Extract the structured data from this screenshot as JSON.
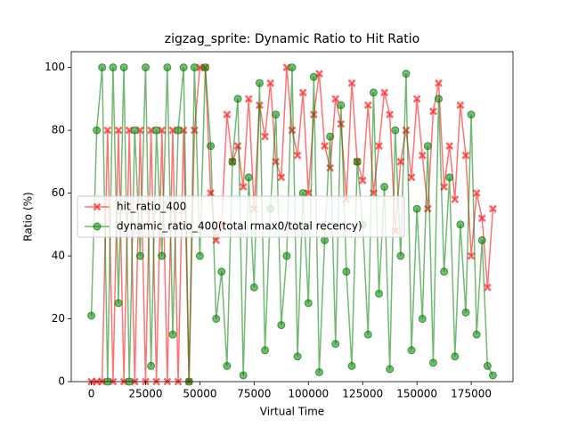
{
  "chart_data": {
    "type": "line",
    "title": "zigzag_sprite: Dynamic Ratio to Hit Ratio",
    "xlabel": "Virtual Time",
    "ylabel": "Ratio (%)",
    "x": [
      0,
      2500,
      5000,
      7500,
      10000,
      12500,
      15000,
      17500,
      20000,
      22500,
      25000,
      27500,
      30000,
      32500,
      35000,
      37500,
      40000,
      42500,
      45000,
      47500,
      50000,
      52500,
      55000,
      57500,
      60000,
      62500,
      65000,
      67500,
      70000,
      72500,
      75000,
      77500,
      80000,
      82500,
      85000,
      87500,
      90000,
      92500,
      95000,
      97500,
      100000,
      102500,
      105000,
      107500,
      110000,
      112500,
      115000,
      117500,
      120000,
      122500,
      125000,
      127500,
      130000,
      132500,
      135000,
      137500,
      140000,
      142500,
      145000,
      147500,
      150000,
      152500,
      155000,
      157500,
      160000,
      162500,
      165000,
      167500,
      170000,
      172500,
      175000,
      177500,
      180000,
      182500,
      185000
    ],
    "series": [
      {
        "name": "hit_ratio_400",
        "color": "#ff0000",
        "marker": "x",
        "values": [
          0,
          0,
          0,
          80,
          0,
          80,
          0,
          80,
          0,
          80,
          0,
          80,
          0,
          80,
          0,
          80,
          0,
          80,
          0,
          80,
          100,
          100,
          60,
          45,
          50,
          85,
          70,
          75,
          62,
          90,
          55,
          88,
          78,
          95,
          70,
          65,
          100,
          80,
          72,
          92,
          60,
          85,
          98,
          75,
          68,
          90,
          82,
          58,
          95,
          70,
          64,
          88,
          60,
          75,
          92,
          85,
          48,
          70,
          80,
          65,
          90,
          72,
          55,
          86,
          95,
          62,
          75,
          58,
          88,
          72,
          40,
          60,
          52,
          30,
          55
        ]
      },
      {
        "name": "dynamic_ratio_400(total rmax0/total recency)",
        "color": "#008000",
        "marker": "o",
        "values": [
          21,
          80,
          100,
          0,
          100,
          25,
          100,
          0,
          80,
          40,
          100,
          5,
          80,
          40,
          100,
          15,
          80,
          100,
          0,
          100,
          40,
          100,
          75,
          20,
          35,
          5,
          70,
          90,
          2,
          65,
          30,
          95,
          10,
          55,
          85,
          18,
          40,
          100,
          8,
          60,
          25,
          97,
          3,
          45,
          78,
          12,
          88,
          35,
          5,
          70,
          50,
          15,
          92,
          28,
          62,
          4,
          80,
          40,
          98,
          10,
          55,
          20,
          75,
          6,
          90,
          35,
          65,
          8,
          50,
          22,
          85,
          15,
          45,
          5,
          2
        ]
      }
    ],
    "xlim": [
      -9250,
      194250
    ],
    "ylim": [
      0,
      105
    ],
    "xticks": [
      0,
      25000,
      50000,
      75000,
      100000,
      125000,
      150000,
      175000
    ],
    "yticks": [
      0,
      20,
      40,
      60,
      80,
      100
    ],
    "grid": false,
    "legend": "center left"
  }
}
